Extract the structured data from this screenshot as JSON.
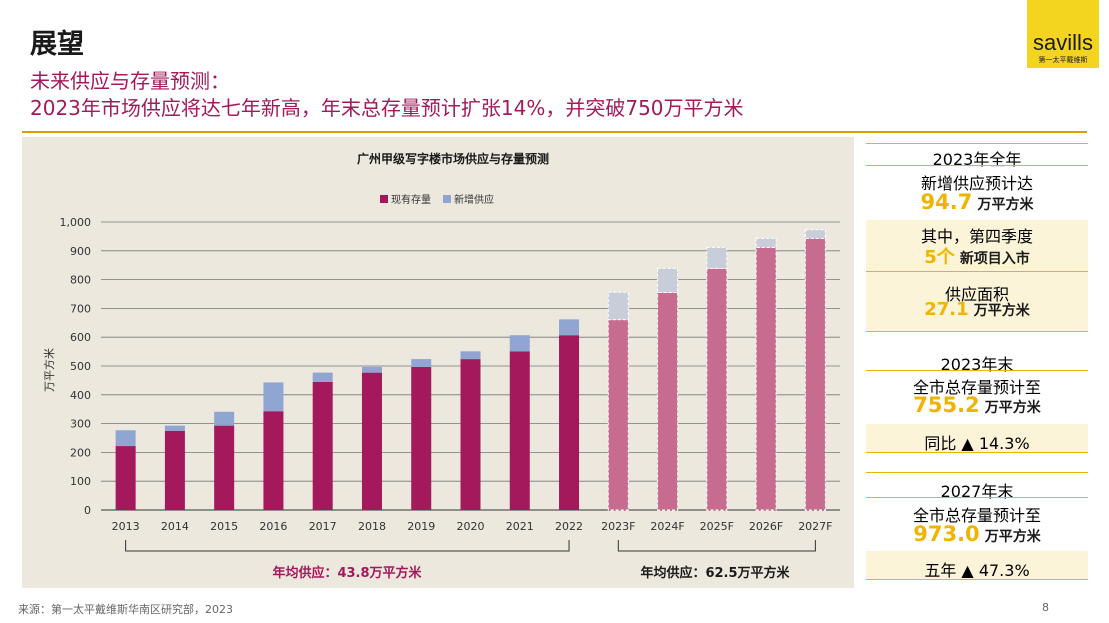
{
  "header": {
    "title": "展望",
    "subtitle_line1": "未来供应与存量预测：",
    "subtitle_line2": "2023年市场供应将达七年新高，年末总存量预计扩张14%，并突破750万平方米"
  },
  "logo": {
    "word": "savills",
    "sub": "第一太平戴维斯"
  },
  "colors": {
    "title_accent": "#a3195b",
    "stock": "#a3195b",
    "stock_forecast": "#c76b8f",
    "supply": "#8fa6d3",
    "supply_forecast": "#c9ccd9",
    "highlight": "#f0b400"
  },
  "chart_data": {
    "type": "bar",
    "title": "广州甲级写字楼市场供应与存量预测",
    "ylabel": "万平方米",
    "ylim": [
      0,
      1000
    ],
    "yticks": [
      "0",
      "100",
      "200",
      "300",
      "400",
      "500",
      "600",
      "700",
      "800",
      "900",
      "1,000"
    ],
    "stacked": true,
    "categories": [
      "2013",
      "2014",
      "2015",
      "2016",
      "2017",
      "2018",
      "2019",
      "2020",
      "2021",
      "2022",
      "2023F",
      "2024F",
      "2025F",
      "2026F",
      "2027F"
    ],
    "series": [
      {
        "name": "现有存量",
        "values": [
          222,
          275,
          293,
          343,
          445,
          477,
          497,
          524,
          551,
          607,
          661,
          755,
          839,
          912,
          943
        ]
      },
      {
        "name": "新增供应",
        "values": [
          55,
          18,
          48,
          100,
          32,
          20,
          27,
          27,
          56,
          55,
          95,
          84,
          73,
          31,
          30
        ]
      }
    ],
    "forecast_from_index": 10,
    "legend_position": "top-center",
    "grid": true,
    "annotations": [
      {
        "text": "年均供应：43.8万平方米",
        "from_category": "2013",
        "to_category": "2022"
      },
      {
        "text": "年均供应：62.5万平方米",
        "from_category": "2023F",
        "to_category": "2027F"
      }
    ]
  },
  "sidebar": {
    "block1_header": "2023年全年",
    "block1_label": "新增供应预计达",
    "block1_value": "94.7",
    "block1_unit": "万平方米",
    "block1_sub": "其中，第四季度",
    "block1_count": "5个",
    "block1_count_text": "新项目入市",
    "block1_area_label": "供应面积",
    "block1_area_value": "27.1",
    "block1_area_unit": "万平方米",
    "block2_header": "2023年末",
    "block2_label": "全市总存量预计至",
    "block2_value": "755.2",
    "block2_unit": "万平方米",
    "block2_change": "同比 ▲ 14.3%",
    "block3_header": "2027年末",
    "block3_label": "全市总存量预计至",
    "block3_value": "973.0",
    "block3_unit": "万平方米",
    "block3_change": "五年 ▲ 47.3%"
  },
  "footer": {
    "source": "来源：第一太平戴维斯华南区研究部，2023",
    "page": "8"
  }
}
